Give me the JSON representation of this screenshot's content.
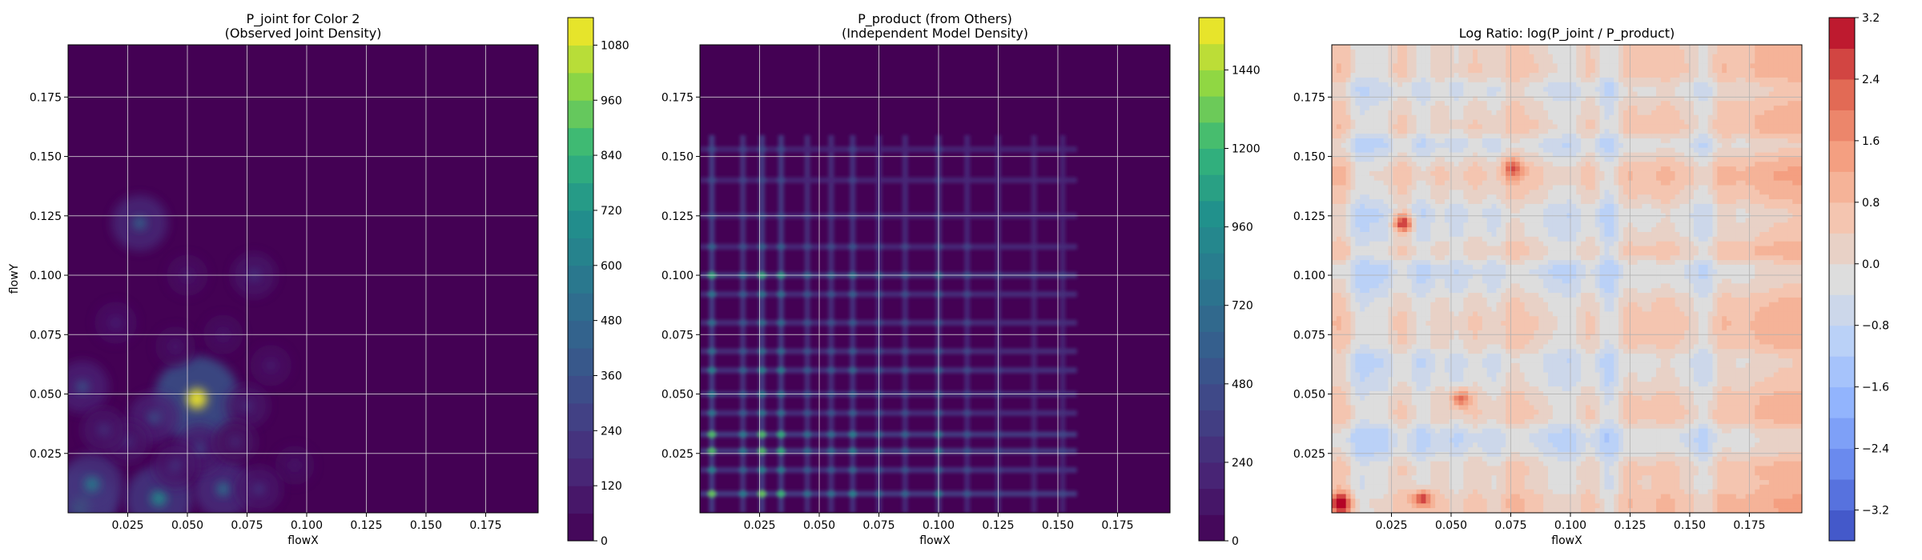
{
  "chart_data": [
    {
      "type": "heatmap",
      "title": "P_joint for Color 2\n(Observed Joint Density)",
      "xlabel": "flowX",
      "ylabel": "flowY",
      "xlim": [
        0.0,
        0.197
      ],
      "ylim": [
        0.0,
        0.197
      ],
      "x_ticks": [
        "0.025",
        "0.050",
        "0.075",
        "0.100",
        "0.125",
        "0.150",
        "0.175"
      ],
      "y_ticks": [
        "0.025",
        "0.050",
        "0.075",
        "0.100",
        "0.125",
        "0.150",
        "0.175"
      ],
      "grid": true,
      "colormap": "viridis",
      "background_color": "#440154",
      "colorbar": {
        "min": 0,
        "max": 1140,
        "levels": 19,
        "tick_values": [
          0,
          120,
          240,
          360,
          480,
          600,
          720,
          840,
          960,
          1080
        ],
        "tick_labels": [
          "0",
          "120",
          "240",
          "360",
          "480",
          "600",
          "720",
          "840",
          "960",
          "1080"
        ]
      },
      "hotspots": [
        {
          "x": 0.054,
          "y": 0.048,
          "value": 1120
        },
        {
          "x": 0.006,
          "y": 0.004,
          "value": 760
        },
        {
          "x": 0.038,
          "y": 0.006,
          "value": 700
        },
        {
          "x": 0.01,
          "y": 0.012,
          "value": 620
        },
        {
          "x": 0.065,
          "y": 0.01,
          "value": 540
        },
        {
          "x": 0.03,
          "y": 0.122,
          "value": 480
        },
        {
          "x": 0.006,
          "y": 0.053,
          "value": 400
        },
        {
          "x": 0.036,
          "y": 0.04,
          "value": 380
        },
        {
          "x": 0.055,
          "y": 0.027,
          "value": 320
        },
        {
          "x": 0.078,
          "y": 0.1,
          "value": 240
        },
        {
          "x": 0.045,
          "y": 0.02,
          "value": 260
        },
        {
          "x": 0.025,
          "y": 0.03,
          "value": 230
        },
        {
          "x": 0.075,
          "y": 0.045,
          "value": 220
        },
        {
          "x": 0.085,
          "y": 0.062,
          "value": 160
        },
        {
          "x": 0.02,
          "y": 0.08,
          "value": 180
        },
        {
          "x": 0.05,
          "y": 0.1,
          "value": 160
        },
        {
          "x": 0.07,
          "y": 0.03,
          "value": 200
        },
        {
          "x": 0.015,
          "y": 0.035,
          "value": 240
        },
        {
          "x": 0.045,
          "y": 0.07,
          "value": 140
        },
        {
          "x": 0.095,
          "y": 0.02,
          "value": 120
        },
        {
          "x": 0.065,
          "y": 0.075,
          "value": 130
        },
        {
          "x": 0.08,
          "y": 0.01,
          "value": 260
        }
      ]
    },
    {
      "type": "heatmap",
      "title": "P_product (from Others)\n(Independent Model Density)",
      "xlabel": "flowX",
      "ylabel": "",
      "xlim": [
        0.0,
        0.197
      ],
      "ylim": [
        0.0,
        0.197
      ],
      "x_ticks": [
        "0.025",
        "0.050",
        "0.075",
        "0.100",
        "0.125",
        "0.150",
        "0.175"
      ],
      "y_ticks": [
        "0.025",
        "0.050",
        "0.075",
        "0.100",
        "0.125",
        "0.150",
        "0.175"
      ],
      "grid": true,
      "colormap": "viridis",
      "background_color": "#440154",
      "colorbar": {
        "min": 0,
        "max": 1600,
        "levels": 20,
        "tick_values": [
          0,
          240,
          480,
          720,
          960,
          1200,
          1440
        ],
        "tick_labels": [
          "0",
          "240",
          "480",
          "720",
          "960",
          "1200",
          "1440"
        ]
      },
      "x_bands": [
        {
          "x": 0.005,
          "weight": 1.0
        },
        {
          "x": 0.018,
          "weight": 0.55
        },
        {
          "x": 0.026,
          "weight": 1.0
        },
        {
          "x": 0.034,
          "weight": 0.9
        },
        {
          "x": 0.045,
          "weight": 0.45
        },
        {
          "x": 0.055,
          "weight": 0.45
        },
        {
          "x": 0.064,
          "weight": 0.6
        },
        {
          "x": 0.075,
          "weight": 0.4
        },
        {
          "x": 0.086,
          "weight": 0.35
        },
        {
          "x": 0.1,
          "weight": 0.55
        },
        {
          "x": 0.112,
          "weight": 0.25
        },
        {
          "x": 0.125,
          "weight": 0.15
        },
        {
          "x": 0.14,
          "weight": 0.1
        },
        {
          "x": 0.152,
          "weight": 0.12
        }
      ],
      "y_bands": [
        {
          "y": 0.008,
          "weight": 1.0
        },
        {
          "y": 0.018,
          "weight": 0.6
        },
        {
          "y": 0.026,
          "weight": 0.95
        },
        {
          "y": 0.033,
          "weight": 0.95
        },
        {
          "y": 0.042,
          "weight": 0.5
        },
        {
          "y": 0.05,
          "weight": 0.55
        },
        {
          "y": 0.06,
          "weight": 0.6
        },
        {
          "y": 0.068,
          "weight": 0.45
        },
        {
          "y": 0.08,
          "weight": 0.45
        },
        {
          "y": 0.092,
          "weight": 0.5
        },
        {
          "y": 0.1,
          "weight": 0.85
        },
        {
          "y": 0.112,
          "weight": 0.35
        },
        {
          "y": 0.125,
          "weight": 0.2
        },
        {
          "y": 0.14,
          "weight": 0.15
        },
        {
          "y": 0.153,
          "weight": 0.15
        }
      ]
    },
    {
      "type": "heatmap",
      "title": "Log Ratio: log(P_joint / P_product)",
      "xlabel": "flowX",
      "ylabel": "",
      "xlim": [
        0.0,
        0.197
      ],
      "ylim": [
        0.0,
        0.197
      ],
      "x_ticks": [
        "0.025",
        "0.050",
        "0.075",
        "0.100",
        "0.125",
        "0.150",
        "0.175"
      ],
      "y_ticks": [
        "0.025",
        "0.050",
        "0.075",
        "0.100",
        "0.125",
        "0.150",
        "0.175"
      ],
      "grid": true,
      "colormap": "coolwarm",
      "colorbar": {
        "min": -3.6,
        "max": 3.2,
        "levels": 17,
        "tick_values": [
          -3.2,
          -2.4,
          -1.6,
          -0.8,
          0.0,
          0.8,
          1.6,
          2.4,
          3.2
        ],
        "tick_labels": [
          "−3.2",
          "−2.4",
          "−1.6",
          "−0.8",
          "0.0",
          "0.8",
          "1.6",
          "2.4",
          "3.2"
        ]
      },
      "x_profile": [
        {
          "x": 0.004,
          "value": 1.2
        },
        {
          "x": 0.012,
          "value": -1.2
        },
        {
          "x": 0.02,
          "value": -0.8
        },
        {
          "x": 0.03,
          "value": 0.6
        },
        {
          "x": 0.038,
          "value": -1.0
        },
        {
          "x": 0.045,
          "value": 0.4
        },
        {
          "x": 0.052,
          "value": -0.6
        },
        {
          "x": 0.06,
          "value": 0.5
        },
        {
          "x": 0.068,
          "value": -0.4
        },
        {
          "x": 0.076,
          "value": 1.0
        },
        {
          "x": 0.085,
          "value": 0.4
        },
        {
          "x": 0.093,
          "value": -0.5
        },
        {
          "x": 0.1,
          "value": -0.8
        },
        {
          "x": 0.108,
          "value": 0.6
        },
        {
          "x": 0.116,
          "value": -1.4
        },
        {
          "x": 0.124,
          "value": 0.8
        },
        {
          "x": 0.132,
          "value": 0.5
        },
        {
          "x": 0.14,
          "value": 1.0
        },
        {
          "x": 0.148,
          "value": 0.4
        },
        {
          "x": 0.156,
          "value": -0.8
        },
        {
          "x": 0.164,
          "value": 1.2
        },
        {
          "x": 0.172,
          "value": 0.8
        },
        {
          "x": 0.18,
          "value": 1.4
        },
        {
          "x": 0.188,
          "value": 1.6
        },
        {
          "x": 0.195,
          "value": 1.8
        }
      ],
      "y_profile": [
        {
          "y": 0.004,
          "value": 1.0
        },
        {
          "y": 0.012,
          "value": 0.2
        },
        {
          "y": 0.02,
          "value": 0.5
        },
        {
          "y": 0.026,
          "value": -1.2
        },
        {
          "y": 0.033,
          "value": -1.4
        },
        {
          "y": 0.04,
          "value": 0.6
        },
        {
          "y": 0.048,
          "value": 0.3
        },
        {
          "y": 0.056,
          "value": -0.6
        },
        {
          "y": 0.064,
          "value": -1.0
        },
        {
          "y": 0.072,
          "value": 0.4
        },
        {
          "y": 0.08,
          "value": 0.6
        },
        {
          "y": 0.088,
          "value": 0.2
        },
        {
          "y": 0.096,
          "value": -0.8
        },
        {
          "y": 0.102,
          "value": -1.4
        },
        {
          "y": 0.11,
          "value": 0.5
        },
        {
          "y": 0.118,
          "value": -0.6
        },
        {
          "y": 0.126,
          "value": -1.0
        },
        {
          "y": 0.134,
          "value": 0.3
        },
        {
          "y": 0.142,
          "value": 1.0
        },
        {
          "y": 0.15,
          "value": 0.4
        },
        {
          "y": 0.154,
          "value": -1.6
        },
        {
          "y": 0.162,
          "value": 0.6
        },
        {
          "y": 0.17,
          "value": 0.2
        },
        {
          "y": 0.178,
          "value": -0.8
        },
        {
          "y": 0.186,
          "value": 0.6
        },
        {
          "y": 0.194,
          "value": 0.4
        }
      ],
      "hotspots": [
        {
          "x": 0.03,
          "y": 0.122,
          "value": 3.0
        },
        {
          "x": 0.004,
          "y": 0.004,
          "value": 2.8
        },
        {
          "x": 0.038,
          "y": 0.006,
          "value": 2.6
        },
        {
          "x": 0.054,
          "y": 0.048,
          "value": 2.2
        },
        {
          "x": 0.076,
          "y": 0.145,
          "value": 1.8
        }
      ]
    }
  ]
}
